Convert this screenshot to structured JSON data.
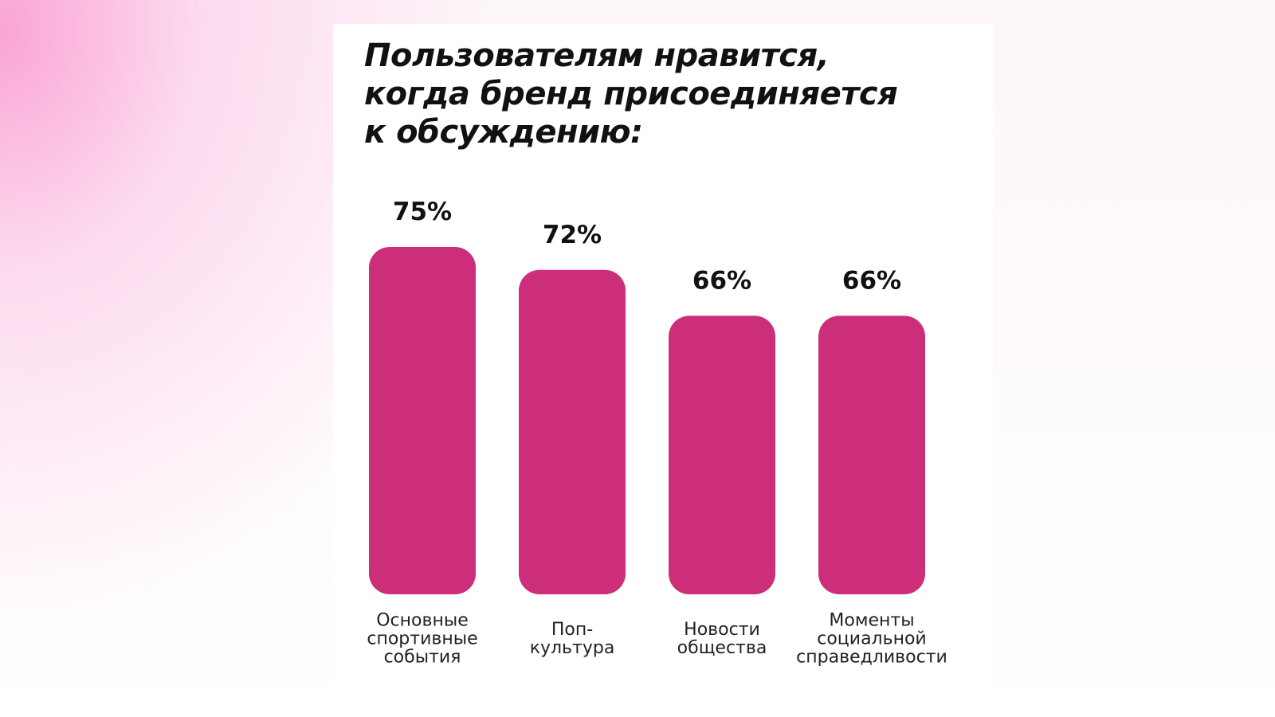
{
  "chart_data": {
    "type": "bar",
    "title": "Пользователям нравится,\nкогда бренд присоединяется\nк обсуждению:",
    "xlabel": "",
    "ylabel": "",
    "categories": [
      [
        "Основные",
        "спортивные",
        "события"
      ],
      [
        "Поп-",
        "культура"
      ],
      [
        "Новости",
        "общества"
      ],
      [
        "Моменты",
        "социальной",
        "справедливости"
      ]
    ],
    "values": [
      75,
      72,
      66,
      66
    ],
    "value_labels": [
      "75%",
      "72%",
      "66%",
      "66%"
    ],
    "unit": "%",
    "grid": false,
    "legend": "none",
    "bar_color": "#cc2e7a"
  }
}
